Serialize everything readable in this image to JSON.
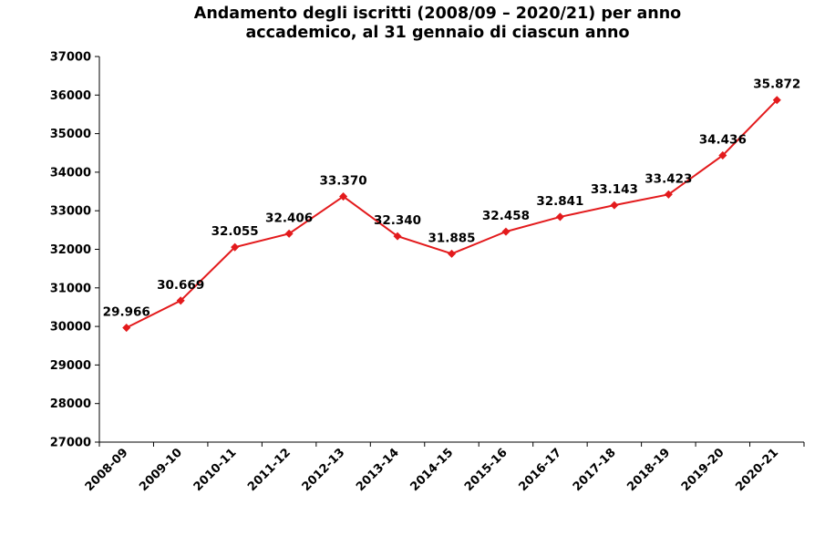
{
  "chart_data": {
    "type": "line",
    "title_lines": [
      "Andamento degli iscritti (2008/09 – 2020/21) per anno",
      "accademico, al 31 gennaio di ciascun anno"
    ],
    "categories": [
      "2008-09",
      "2009-10",
      "2010-11",
      "2011-12",
      "2012-13",
      "2013-14",
      "2014-15",
      "2015-16",
      "2016-17",
      "2017-18",
      "2018-19",
      "2019-20",
      "2020-21"
    ],
    "series": [
      {
        "values": [
          29966,
          30669,
          32055,
          32406,
          33370,
          32340,
          31885,
          32458,
          32841,
          33143,
          33423,
          34436,
          35872
        ],
        "data_labels": [
          "29.966",
          "30.669",
          "32.055",
          "32.406",
          "33.370",
          "32.340",
          "31.885",
          "32.458",
          "32.841",
          "33.143",
          "33.423",
          "34.436",
          "35.872"
        ],
        "color": "#e31a1c"
      }
    ],
    "ylim": [
      27000,
      37000
    ],
    "yticks": [
      "27000",
      "28000",
      "29000",
      "30000",
      "31000",
      "32000",
      "33000",
      "34000",
      "35000",
      "36000",
      "37000"
    ],
    "grid": false,
    "legend": "none"
  }
}
